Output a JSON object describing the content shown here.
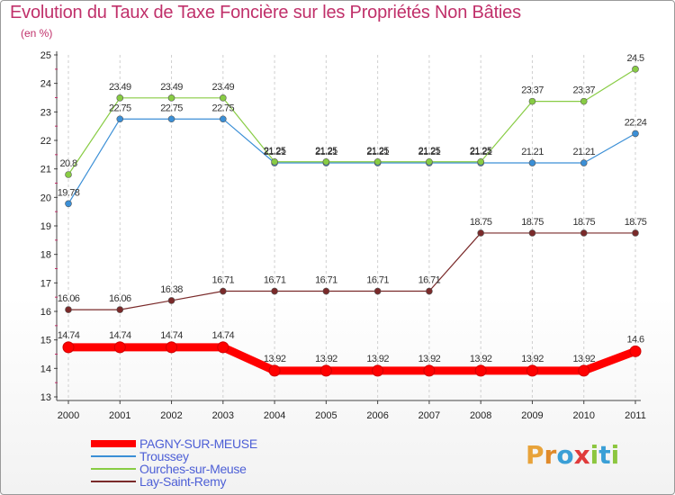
{
  "header": {
    "title": "Evolution du Taux de Taxe Foncière sur les Propriétés Non Bâties",
    "subtitle": "(en %)"
  },
  "logo": {
    "text": "Proxiti",
    "letters": [
      "P",
      "r",
      "o",
      "x",
      "i",
      "t",
      "i"
    ],
    "colors": [
      "#e8a33a",
      "#e08a2a",
      "#3a9fd6",
      "#e03b3b",
      "#8cc63f",
      "#3a9fd6",
      "#8cc63f"
    ]
  },
  "chart_data": {
    "type": "line",
    "x": [
      "2000",
      "2001",
      "2002",
      "2003",
      "2004",
      "2005",
      "2006",
      "2007",
      "2008",
      "2009",
      "2010",
      "2011"
    ],
    "ylim": [
      13,
      25
    ],
    "yticks": [
      "13",
      "14",
      "15",
      "16",
      "17",
      "18",
      "19",
      "20",
      "21",
      "22",
      "23",
      "24",
      "25"
    ],
    "grid": "vertical dashed",
    "legend": "bottom-left",
    "series": [
      {
        "name": "PAGNY-SUR-MEUSE",
        "color": "#ff0000",
        "values": [
          14.74,
          14.74,
          14.74,
          14.74,
          13.92,
          13.92,
          13.92,
          13.92,
          13.92,
          13.92,
          13.92,
          14.6
        ],
        "labels": [
          "14.74",
          "14.74",
          "14.74",
          "14.74",
          "13.92",
          "13.92",
          "13.92",
          "13.92",
          "13.92",
          "13.92",
          "13.92",
          "14.6"
        ]
      },
      {
        "name": "Troussey",
        "color": "#3b8fd6",
        "values": [
          19.78,
          22.75,
          22.75,
          22.75,
          21.21,
          21.21,
          21.21,
          21.21,
          21.21,
          21.21,
          21.21,
          22.24
        ],
        "labels": [
          "19.78",
          "22.75",
          "22.75",
          "22.75",
          "21.21",
          "21.21",
          "21.21",
          "21.21",
          "21.21",
          "21.21",
          "21.21",
          "22.24"
        ]
      },
      {
        "name": "Ourches-sur-Meuse",
        "color": "#88cc44",
        "values": [
          20.8,
          23.49,
          23.49,
          23.49,
          21.25,
          21.25,
          21.25,
          21.25,
          21.25,
          23.37,
          23.37,
          24.5
        ],
        "labels": [
          "20.8",
          "23.49",
          "23.49",
          "23.49",
          "21.25",
          "21.25",
          "21.25",
          "21.25",
          "21.25",
          "23.37",
          "23.37",
          "24.5"
        ]
      },
      {
        "name": "Lay-Saint-Remy",
        "color": "#7a2a2a",
        "values": [
          16.06,
          16.06,
          16.38,
          16.71,
          16.71,
          16.71,
          16.71,
          16.71,
          18.75,
          18.75,
          18.75,
          18.75
        ],
        "labels": [
          "16.06",
          "16.06",
          "16.38",
          "16.71",
          "16.71",
          "16.71",
          "16.71",
          "16.71",
          "18.75",
          "18.75",
          "18.75",
          "18.75"
        ]
      }
    ]
  }
}
